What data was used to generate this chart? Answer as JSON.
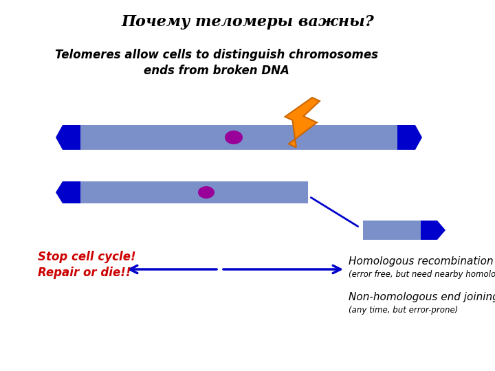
{
  "title": "Почему теломеры важны?",
  "subtitle_line1": "Telomeres allow cells to distinguish chromosomes",
  "subtitle_line2": "ends from broken DNA",
  "stop_text_line1": "Stop cell cycle!",
  "stop_text_line2": "Repair or die!!",
  "homologous_text": "Homologous recombination",
  "homologous_sub": "(error free, but need nearby homologue)",
  "nonhomologous_text": "Non-homologous end joining",
  "nonhomologous_sub": "(any time, but error-prone)",
  "bg_color": "#ffffff",
  "chrom_body_color": "#7B8FC8",
  "chrom_cap_color": "#0000CC",
  "centromere_color": "#990099",
  "arrow_color": "#0000CC",
  "stop_color": "#CC0000",
  "lightning_orange": "#FF8800",
  "lightning_dark": "#CC6600",
  "frag_body_color": "#7B8FC8",
  "frag_cap_color": "#0000CC",
  "diag_line_color": "#0000CC"
}
